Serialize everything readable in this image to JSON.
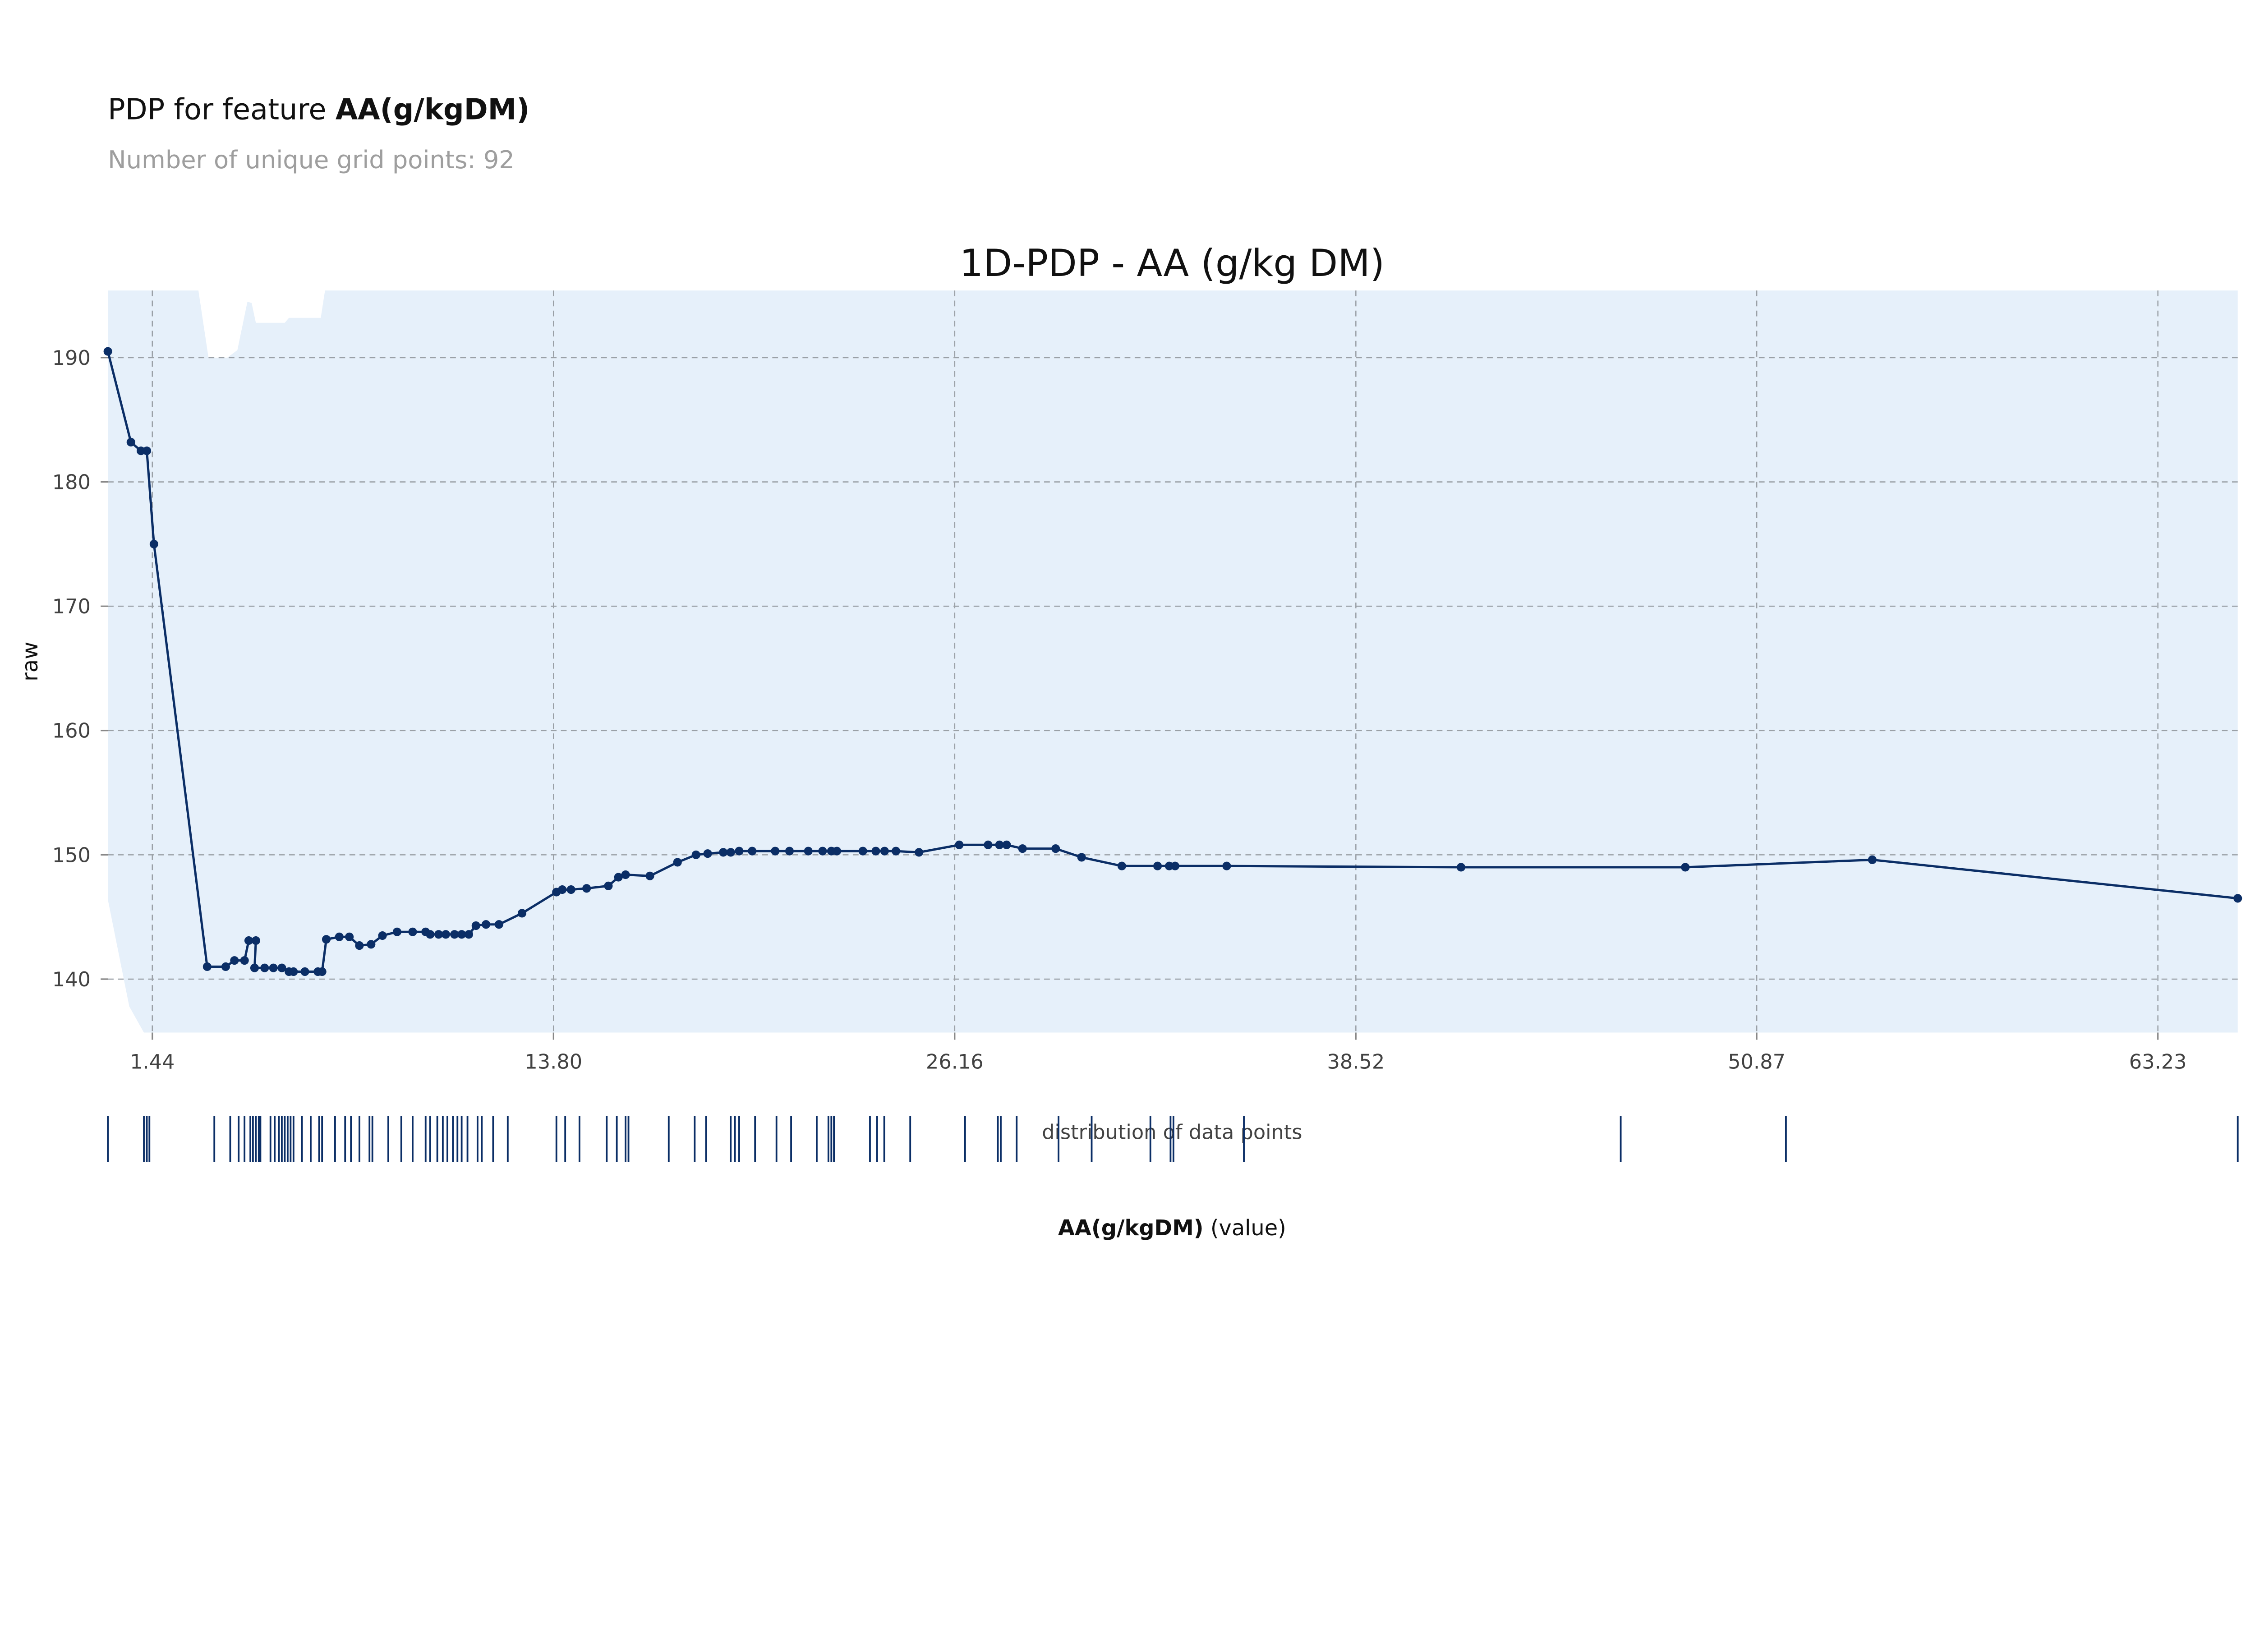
{
  "header": {
    "title_prefix": "PDP for feature ",
    "title_feature": "AA(g/kgDM)",
    "subtitle": "Number of unique grid points: 92"
  },
  "colors": {
    "line": "#0b2e66",
    "band": "#e6f0fa",
    "rug": "#0b2e66",
    "grid": "#9aa0a6"
  },
  "chart_data": {
    "type": "line",
    "title": "1D-PDP - AA (g/kg DM)",
    "xlabel": "",
    "ylabel": "raw",
    "xlim": [
      0.07,
      65.69
    ],
    "ylim": [
      135.7,
      195.4
    ],
    "grid": true,
    "xticks": [
      1.44,
      13.8,
      26.16,
      38.52,
      50.87,
      63.23
    ],
    "xtick_labels": [
      "1.44",
      "13.80",
      "26.16",
      "38.52",
      "50.87",
      "63.23"
    ],
    "yticks": [
      140,
      150,
      160,
      170,
      180,
      190
    ],
    "ytick_labels": [
      "140",
      "150",
      "160",
      "170",
      "180",
      "190"
    ],
    "x": [
      0.07,
      0.78,
      1.09,
      1.27,
      1.49,
      3.13,
      3.7,
      3.97,
      4.28,
      4.41,
      4.63,
      4.59,
      4.9,
      5.17,
      5.43,
      5.65,
      5.79,
      6.14,
      6.54,
      6.67,
      6.8,
      7.2,
      7.51,
      7.82,
      8.18,
      8.53,
      8.98,
      9.46,
      9.86,
      10.0,
      10.26,
      10.48,
      10.75,
      10.97,
      11.19,
      11.41,
      11.72,
      12.12,
      12.83,
      13.89,
      14.07,
      14.34,
      14.82,
      15.49,
      15.8,
      16.02,
      16.77,
      17.62,
      18.19,
      18.55,
      19.03,
      19.26,
      19.52,
      19.92,
      20.63,
      21.07,
      21.65,
      22.09,
      22.36,
      22.53,
      23.33,
      23.73,
      24.0,
      24.35,
      25.06,
      26.3,
      27.19,
      27.54,
      27.76,
      28.25,
      29.27,
      30.07,
      31.31,
      32.41,
      32.77,
      32.95,
      34.54,
      41.76,
      48.67,
      54.43,
      65.69
    ],
    "y": [
      190.5,
      183.2,
      182.5,
      182.5,
      175.0,
      141.0,
      141.0,
      141.5,
      141.5,
      143.1,
      143.1,
      140.9,
      140.9,
      140.9,
      140.9,
      140.6,
      140.6,
      140.6,
      140.6,
      140.6,
      143.2,
      143.4,
      143.4,
      142.7,
      142.8,
      143.5,
      143.8,
      143.8,
      143.8,
      143.6,
      143.6,
      143.6,
      143.6,
      143.6,
      143.6,
      144.3,
      144.4,
      144.4,
      145.3,
      147.0,
      147.2,
      147.2,
      147.3,
      147.5,
      148.2,
      148.4,
      148.3,
      149.4,
      150.0,
      150.1,
      150.2,
      150.2,
      150.3,
      150.3,
      150.3,
      150.3,
      150.3,
      150.3,
      150.3,
      150.3,
      150.3,
      150.3,
      150.3,
      150.3,
      150.2,
      150.8,
      150.8,
      150.8,
      150.8,
      150.5,
      150.5,
      149.8,
      149.1,
      149.1,
      149.1,
      149.1,
      149.1,
      149.0,
      149.0,
      149.6,
      146.5
    ],
    "band_upper": {
      "x": [
        0.07,
        2.86,
        3.17,
        3.75,
        4.06,
        4.37,
        4.5,
        4.63,
        5.52,
        5.65,
        6.63,
        6.76,
        65.69
      ],
      "y": [
        196,
        196,
        190.0,
        190.0,
        190.6,
        194.5,
        194.4,
        192.8,
        192.8,
        193.2,
        193.2,
        196,
        196
      ]
    },
    "band_lower": {
      "x": [
        0.07,
        0.73,
        1.18,
        65.69
      ],
      "y": [
        146.4,
        137.8,
        135.7,
        135.7
      ]
    },
    "rug_title": "distribution of data points",
    "rug_label_bold": "AA(g/kgDM)",
    "rug_label_rest": " (value)",
    "rug": [
      0.07,
      1.18,
      1.27,
      1.35,
      3.35,
      3.84,
      4.1,
      4.28,
      4.46,
      4.54,
      4.63,
      4.72,
      4.77,
      5.08,
      5.21,
      5.34,
      5.43,
      5.52,
      5.61,
      5.7,
      5.79,
      6.05,
      6.32,
      6.58,
      6.67,
      7.07,
      7.38,
      7.56,
      7.82,
      8.13,
      8.22,
      8.71,
      9.11,
      9.46,
      9.86,
      10.0,
      10.22,
      10.39,
      10.53,
      10.7,
      10.84,
      10.97,
      11.15,
      11.46,
      11.59,
      11.94,
      12.39,
      13.89,
      14.16,
      14.6,
      15.44,
      15.75,
      16.02,
      16.11,
      17.35,
      18.15,
      18.5,
      19.26,
      19.39,
      19.52,
      20.01,
      20.67,
      21.12,
      21.91,
      22.27,
      22.36,
      22.44,
      23.55,
      23.77,
      23.99,
      24.79,
      26.48,
      27.49,
      27.58,
      28.07,
      29.36,
      30.38,
      32.19,
      32.81,
      32.9,
      35.07,
      46.68,
      51.77,
      65.69
    ]
  }
}
